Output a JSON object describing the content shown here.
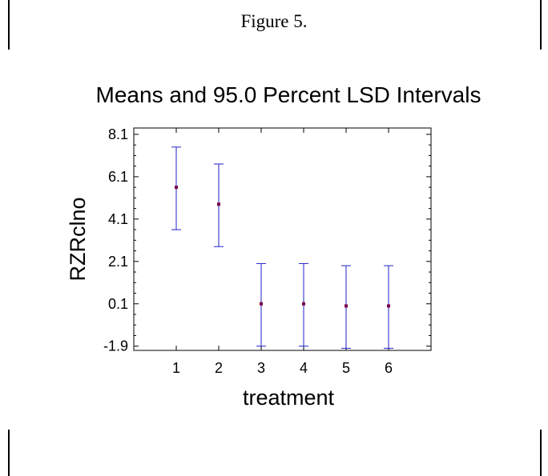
{
  "figure_caption": "Figure 5.",
  "chart_data": {
    "type": "scatter",
    "title": "Means and 95.0 Percent LSD Intervals",
    "xlabel": "treatment",
    "ylabel": "RZRclno",
    "categories": [
      "1",
      "2",
      "3",
      "4",
      "5",
      "6"
    ],
    "x_ticks": [
      "1",
      "2",
      "3",
      "4",
      "5",
      "6"
    ],
    "y_ticks": [
      "8.1",
      "6.1",
      "4.1",
      "2.1",
      "0.1",
      "-1.9"
    ],
    "ylim": [
      -2.1,
      8.4
    ],
    "xlim": [
      0,
      7
    ],
    "series": [
      {
        "means": [
          5.6,
          4.8,
          0.1,
          0.1,
          0.0,
          0.0
        ],
        "lower": [
          3.6,
          2.8,
          -1.9,
          -1.9,
          -2.0,
          -2.0
        ],
        "upper": [
          7.5,
          6.7,
          2.0,
          2.0,
          1.9,
          1.9
        ]
      }
    ],
    "colors": {
      "interval": "#2222cc",
      "mean": "#7a0044",
      "frame": "#000000"
    },
    "grid": false
  }
}
